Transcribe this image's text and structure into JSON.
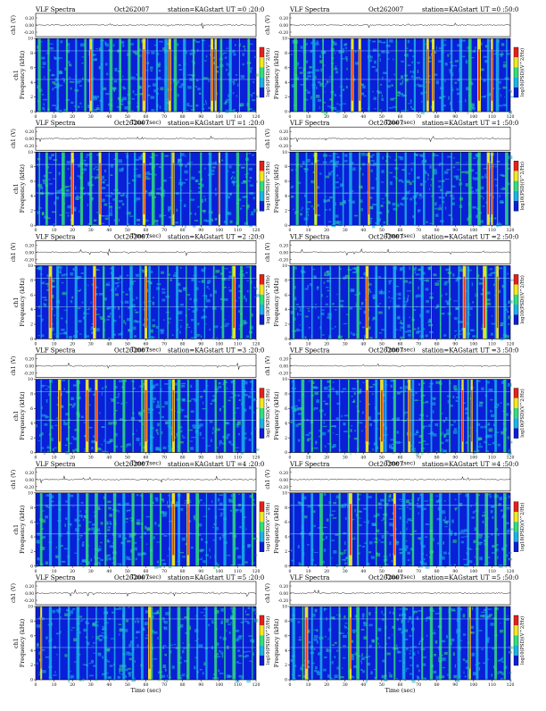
{
  "chart_data": [
    {
      "type": "heatmap",
      "title_left": "VLF Spectra",
      "date": "Oct262007",
      "station": "station=KAG",
      "start": "start  UT =0 :20:0",
      "ylabel": "Frequency (kHz)",
      "ylabel_prefix": "ch1",
      "top_ylabel": "ch1 (V)",
      "top_ticks": [
        "0.20",
        "0.00",
        "-0.20"
      ],
      "xlabel": "Time (sec)",
      "xlim": [
        0,
        120
      ],
      "ylim": [
        0,
        10
      ],
      "xticks": [
        0,
        10,
        20,
        30,
        40,
        50,
        60,
        70,
        80,
        90,
        100,
        110,
        120
      ],
      "yticks": [
        0,
        2,
        4,
        6,
        8,
        10
      ],
      "colorbar_label": "log10(PSD)(V^2/Hz)",
      "events": [
        2,
        7,
        12,
        17,
        22,
        27,
        31,
        36,
        41,
        46,
        51,
        56,
        61,
        66,
        71,
        76,
        81,
        86,
        91,
        96,
        98,
        101,
        106,
        111,
        116
      ],
      "strong": [
        30,
        59,
        73,
        96,
        98
      ]
    },
    {
      "type": "heatmap",
      "title_left": "VLF Spectra",
      "date": "Oct262007",
      "station": "station=KAG",
      "start": "start  UT =0 :50:0",
      "ylabel": "Frequency (kHz)",
      "ylabel_prefix": "",
      "top_ylabel": "ch1 (V)",
      "top_ticks": [
        "0.20",
        "0.00",
        "-0.20"
      ],
      "xlabel": "Time (sec)",
      "xlim": [
        0,
        120
      ],
      "ylim": [
        0,
        10
      ],
      "xticks": [
        0,
        10,
        20,
        30,
        40,
        50,
        60,
        70,
        80,
        90,
        100,
        110,
        120
      ],
      "yticks": [
        0,
        2,
        4,
        6,
        8,
        10
      ],
      "colorbar_label": "log10(PSD)(V^2/Hz)",
      "events": [
        3,
        8,
        13,
        18,
        23,
        28,
        34,
        38,
        43,
        48,
        53,
        58,
        63,
        68,
        73,
        78,
        83,
        88,
        93,
        98,
        103,
        108,
        113,
        118
      ],
      "strong": [
        34,
        38,
        75,
        78,
        103,
        110
      ]
    },
    {
      "type": "heatmap",
      "title_left": "VLF Spectra",
      "date": "Oct262007",
      "station": "station=KAG",
      "start": "start  UT =1 :20:0",
      "ylabel": "Frequency (kHz)",
      "ylabel_prefix": "ch1",
      "top_ylabel": "ch1 (V)",
      "top_ticks": [
        "0.20",
        "0.00",
        "-0.20"
      ],
      "xlabel": "Time (sec)",
      "xlim": [
        0,
        120
      ],
      "ylim": [
        0,
        10
      ],
      "xticks": [
        0,
        10,
        20,
        30,
        40,
        50,
        60,
        70,
        80,
        90,
        100,
        110,
        120
      ],
      "yticks": [
        0,
        2,
        4,
        6,
        8,
        10
      ],
      "colorbar_label": "log10(PSD)(V^2/Hz)",
      "events": [
        2,
        6,
        11,
        15,
        20,
        25,
        30,
        35,
        40,
        44,
        50,
        54,
        59,
        64,
        69,
        74,
        79,
        84,
        90,
        95,
        100,
        104,
        110,
        115
      ],
      "strong": [
        20,
        35,
        59,
        75,
        100
      ]
    },
    {
      "type": "heatmap",
      "title_left": "VLF Spectra",
      "date": "Oct262007",
      "station": "station=KAG",
      "start": "start  UT =1 :50:0",
      "ylabel": "Frequency (kHz)",
      "ylabel_prefix": "",
      "top_ylabel": "ch1 (V)",
      "top_ticks": [
        "0.20",
        "0.00",
        "-0.20"
      ],
      "xlabel": "Time (sec)",
      "xlim": [
        0,
        120
      ],
      "ylim": [
        0,
        10
      ],
      "xticks": [
        0,
        10,
        20,
        30,
        40,
        50,
        60,
        70,
        80,
        90,
        100,
        110,
        120
      ],
      "yticks": [
        0,
        2,
        4,
        6,
        8,
        10
      ],
      "colorbar_label": "log10(PSD)(V^2/Hz)",
      "events": [
        4,
        9,
        14,
        19,
        24,
        29,
        33,
        38,
        43,
        48,
        53,
        58,
        63,
        68,
        73,
        78,
        83,
        88,
        93,
        98,
        103,
        108,
        113,
        118
      ],
      "strong": [
        14,
        43,
        108,
        110
      ]
    },
    {
      "type": "heatmap",
      "title_left": "VLF Spectra",
      "date": "Oct262007",
      "station": "station=KAG",
      "start": "start  UT =2 :20:0",
      "ylabel": "Frequency (kHz)",
      "ylabel_prefix": "ch1",
      "top_ylabel": "ch1 (V)",
      "top_ticks": [
        "0.20",
        "0.00",
        "-0.20"
      ],
      "xlabel": "Time (sec)",
      "xlim": [
        0,
        120
      ],
      "ylim": [
        0,
        10
      ],
      "xticks": [
        0,
        10,
        20,
        30,
        40,
        50,
        60,
        70,
        80,
        90,
        100,
        110,
        120
      ],
      "yticks": [
        0,
        2,
        4,
        6,
        8,
        10
      ],
      "colorbar_label": "log10(PSD)(V^2/Hz)",
      "events": [
        3,
        8,
        12,
        17,
        22,
        27,
        32,
        37,
        42,
        47,
        52,
        57,
        62,
        67,
        72,
        77,
        82,
        87,
        92,
        97,
        102,
        107,
        112,
        117
      ],
      "strong": [
        8,
        32,
        60,
        108
      ]
    },
    {
      "type": "heatmap",
      "title_left": "VLF Spectra",
      "date": "Oct262007",
      "station": "station=KAG",
      "start": "start  UT =2 :50:0",
      "ylabel": "Frequency (kHz)",
      "ylabel_prefix": "",
      "top_ylabel": "ch1 (V)",
      "top_ticks": [
        "0.20",
        "0.00",
        "-0.20"
      ],
      "xlabel": "Time (sec)",
      "xlim": [
        0,
        120
      ],
      "ylim": [
        0,
        10
      ],
      "xticks": [
        0,
        10,
        20,
        30,
        40,
        50,
        60,
        70,
        80,
        90,
        100,
        110,
        120
      ],
      "yticks": [
        0,
        2,
        4,
        6,
        8,
        10
      ],
      "colorbar_label": "log10(PSD)(V^2/Hz)",
      "events": [
        2,
        7,
        12,
        17,
        22,
        27,
        32,
        37,
        42,
        47,
        52,
        57,
        62,
        67,
        72,
        77,
        82,
        87,
        92,
        97,
        102,
        107,
        112,
        117
      ],
      "strong": [
        42,
        95,
        106,
        113
      ]
    },
    {
      "type": "heatmap",
      "title_left": "VLF Spectra",
      "date": "Oct262007",
      "station": "station=KAG",
      "start": "start  UT =3 :20:0",
      "ylabel": "Frequency (kHz)",
      "ylabel_prefix": "ch1",
      "top_ylabel": "ch1 (V)",
      "top_ticks": [
        "0.20",
        "0.00",
        "-0.20"
      ],
      "xlabel": "Time (sec)",
      "xlim": [
        0,
        120
      ],
      "ylim": [
        0,
        10
      ],
      "xticks": [
        0,
        10,
        20,
        30,
        40,
        50,
        60,
        70,
        80,
        90,
        100,
        110,
        120
      ],
      "yticks": [
        0,
        2,
        4,
        6,
        8,
        10
      ],
      "colorbar_label": "log10(PSD)(V^2/Hz)",
      "events": [
        3,
        8,
        13,
        18,
        23,
        28,
        33,
        38,
        43,
        48,
        53,
        58,
        63,
        68,
        73,
        78,
        83,
        88,
        93,
        98,
        103,
        108,
        113,
        118
      ],
      "strong": [
        13,
        28,
        33,
        60,
        75
      ]
    },
    {
      "type": "heatmap",
      "title_left": "VLF Spectra",
      "date": "Oct262007",
      "station": "station=KAG",
      "start": "start  UT =3 :50:0",
      "ylabel": "Frequency (kHz)",
      "ylabel_prefix": "",
      "top_ylabel": "ch1 (V)",
      "top_ticks": [
        "0.20",
        "0.00",
        "-0.20"
      ],
      "xlabel": "Time (sec)",
      "xlim": [
        0,
        120
      ],
      "ylim": [
        0,
        10
      ],
      "xticks": [
        0,
        10,
        20,
        30,
        40,
        50,
        60,
        70,
        80,
        90,
        100,
        110,
        120
      ],
      "yticks": [
        0,
        2,
        4,
        6,
        8,
        10
      ],
      "colorbar_label": "log10(PSD)(V^2/Hz)",
      "events": [
        2,
        7,
        12,
        17,
        22,
        27,
        32,
        37,
        42,
        47,
        52,
        57,
        62,
        67,
        72,
        77,
        82,
        87,
        92,
        97,
        102,
        107,
        112,
        117
      ],
      "strong": [
        42,
        50,
        65,
        94,
        99
      ]
    },
    {
      "type": "heatmap",
      "title_left": "VLF Spectra",
      "date": "Oct262007",
      "station": "station=KAG",
      "start": "start  UT =4 :20:0",
      "ylabel": "Frequency (kHz)",
      "ylabel_prefix": "ch1",
      "top_ylabel": "ch1 (V)",
      "top_ticks": [
        "0.20",
        "0.00",
        "-0.20"
      ],
      "xlabel": "Time (sec)",
      "xlim": [
        0,
        120
      ],
      "ylim": [
        0,
        10
      ],
      "xticks": [
        0,
        10,
        20,
        30,
        40,
        50,
        60,
        70,
        80,
        90,
        100,
        110,
        120
      ],
      "yticks": [
        0,
        2,
        4,
        6,
        8,
        10
      ],
      "colorbar_label": "log10(PSD)(V^2/Hz)",
      "events": [
        3,
        8,
        13,
        18,
        23,
        28,
        33,
        38,
        43,
        48,
        53,
        58,
        63,
        68,
        73,
        78,
        83,
        88,
        93,
        98,
        103,
        108,
        113,
        118
      ],
      "strong": [
        75,
        83
      ]
    },
    {
      "type": "heatmap",
      "title_left": "VLF Spectra",
      "date": "Oct262007",
      "station": "station=KAG",
      "start": "start  UT =4 :50:0",
      "ylabel": "Frequency (kHz)",
      "ylabel_prefix": "",
      "top_ylabel": "ch1 (V)",
      "top_ticks": [
        "0.20",
        "0.00",
        "-0.20"
      ],
      "xlabel": "Time (sec)",
      "xlim": [
        0,
        120
      ],
      "ylim": [
        0,
        10
      ],
      "xticks": [
        0,
        10,
        20,
        30,
        40,
        50,
        60,
        70,
        80,
        90,
        100,
        110,
        120
      ],
      "yticks": [
        0,
        2,
        4,
        6,
        8,
        10
      ],
      "colorbar_label": "log10(PSD)(V^2/Hz)",
      "events": [
        2,
        7,
        12,
        17,
        22,
        27,
        32,
        37,
        42,
        47,
        52,
        57,
        62,
        67,
        72,
        77,
        82,
        87,
        92,
        97,
        102,
        107,
        112,
        117
      ],
      "strong": [
        33,
        57
      ]
    },
    {
      "type": "heatmap",
      "title_left": "VLF Spectra",
      "date": "Oct262007",
      "station": "station=KAG",
      "start": "start  UT =5 :20:0",
      "ylabel": "Frequency (kHz)",
      "ylabel_prefix": "ch1",
      "top_ylabel": "ch1 (V)",
      "top_ticks": [
        "0.20",
        "0.00",
        "-0.20"
      ],
      "xlabel": "Time (sec)",
      "xlim": [
        0,
        120
      ],
      "ylim": [
        0,
        10
      ],
      "xticks": [
        0,
        10,
        20,
        30,
        40,
        50,
        60,
        70,
        80,
        90,
        100,
        110,
        120
      ],
      "yticks": [
        0,
        2,
        4,
        6,
        8,
        10
      ],
      "colorbar_label": "log10(PSD)(V^2/Hz)",
      "events": [
        3,
        8,
        13,
        18,
        23,
        28,
        33,
        38,
        43,
        48,
        53,
        58,
        63,
        68,
        73,
        78,
        83,
        88,
        93,
        98,
        103,
        108,
        113,
        118
      ],
      "strong": [
        3,
        62
      ]
    },
    {
      "type": "heatmap",
      "title_left": "VLF Spectra",
      "date": "Oct262007",
      "station": "station=KAG",
      "start": "start  UT =5 :50:0",
      "ylabel": "Frequency (kHz)",
      "ylabel_prefix": "",
      "top_ylabel": "ch1 (V)",
      "top_ticks": [
        "0.20",
        "0.00",
        "-0.20"
      ],
      "xlabel": "Time (sec)",
      "xlim": [
        0,
        120
      ],
      "ylim": [
        0,
        10
      ],
      "xticks": [
        0,
        10,
        20,
        30,
        40,
        50,
        60,
        70,
        80,
        90,
        100,
        110,
        120
      ],
      "yticks": [
        0,
        2,
        4,
        6,
        8,
        10
      ],
      "colorbar_label": "log10(PSD)(V^2/Hz)",
      "events": [
        2,
        7,
        12,
        17,
        22,
        27,
        32,
        37,
        42,
        47,
        52,
        57,
        62,
        67,
        72,
        77,
        82,
        87,
        92,
        97,
        102,
        107,
        112,
        117
      ],
      "strong": [
        9,
        33,
        98
      ]
    }
  ],
  "colors": {
    "background_low": "#0a1fd8",
    "mid": "#1ab5e8",
    "green": "#2fe07a",
    "yellow": "#f4e820",
    "red": "#e8201a",
    "border": "#000000"
  }
}
